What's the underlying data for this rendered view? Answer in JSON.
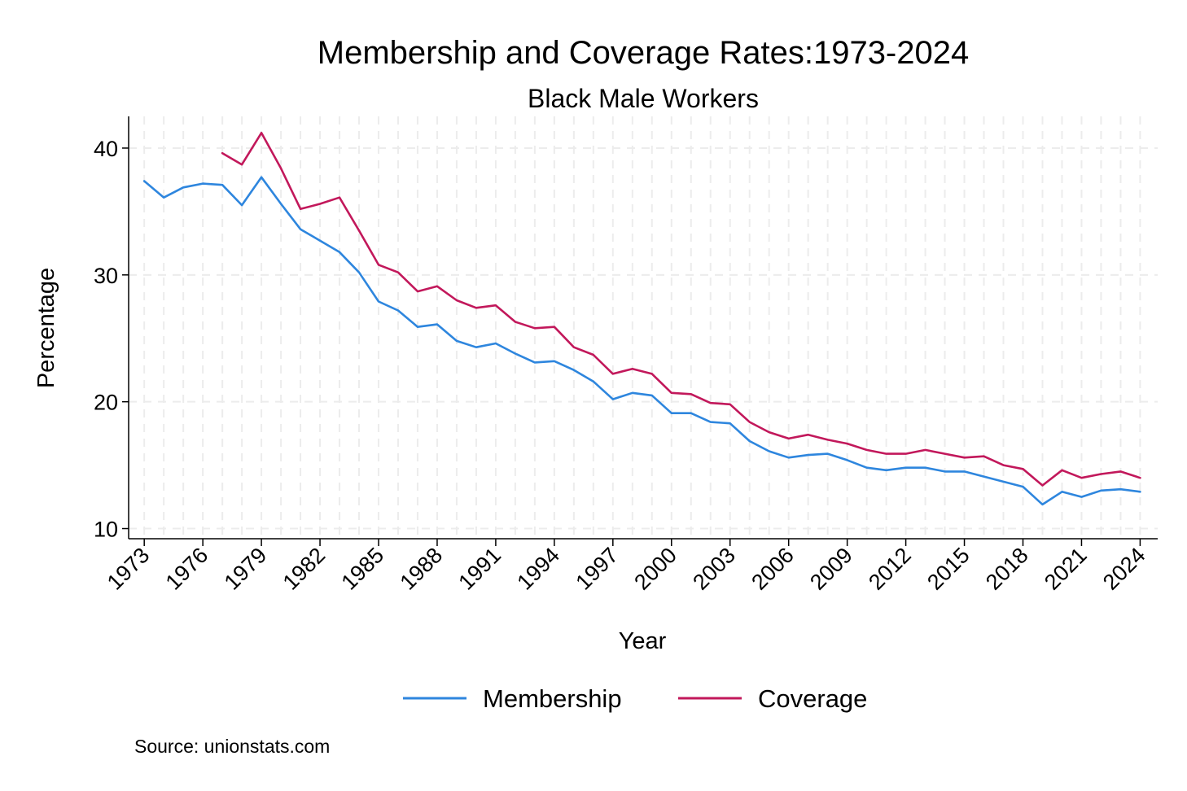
{
  "chart_data": {
    "type": "line",
    "title": "Membership and Coverage Rates:1973-2024",
    "subtitle": "Black Male Workers",
    "xlabel": "Year",
    "ylabel": "Percentage",
    "source": "Source: unionstats.com",
    "xlim": [
      1972.2,
      2024.9
    ],
    "ylim": [
      9.2,
      42.5
    ],
    "yticks": [
      10,
      20,
      30,
      40
    ],
    "xticks": [
      "1973",
      "1976",
      "1979",
      "1982",
      "1985",
      "1988",
      "1991",
      "1994",
      "1997",
      "2000",
      "2003",
      "2006",
      "2009",
      "2012",
      "2015",
      "2018",
      "2021",
      "2024"
    ],
    "grid": true,
    "legend_position": "bottom",
    "x": [
      1973,
      1974,
      1975,
      1976,
      1977,
      1978,
      1979,
      1980,
      1981,
      1982,
      1983,
      1984,
      1985,
      1986,
      1987,
      1988,
      1989,
      1990,
      1991,
      1992,
      1993,
      1994,
      1995,
      1996,
      1997,
      1998,
      1999,
      2000,
      2001,
      2002,
      2003,
      2004,
      2005,
      2006,
      2007,
      2008,
      2009,
      2010,
      2011,
      2012,
      2013,
      2014,
      2015,
      2016,
      2017,
      2018,
      2019,
      2020,
      2021,
      2022,
      2023,
      2024
    ],
    "series": [
      {
        "name": "Membership",
        "color": "#2e86de",
        "values": [
          37.4,
          36.1,
          36.9,
          37.2,
          37.1,
          35.5,
          37.7,
          35.6,
          33.6,
          32.7,
          31.8,
          30.2,
          27.9,
          27.2,
          25.9,
          26.1,
          24.8,
          24.3,
          24.6,
          23.8,
          23.1,
          23.2,
          22.5,
          21.6,
          20.2,
          20.7,
          20.5,
          19.1,
          19.1,
          18.4,
          18.3,
          16.9,
          16.1,
          15.6,
          15.8,
          15.9,
          15.4,
          14.8,
          14.6,
          14.8,
          14.8,
          14.5,
          14.5,
          14.1,
          13.7,
          13.3,
          11.9,
          12.9,
          12.5,
          13.0,
          13.1,
          12.9
        ]
      },
      {
        "name": "Coverage",
        "color": "#c2185b",
        "values": [
          null,
          null,
          null,
          null,
          39.6,
          38.7,
          41.2,
          38.4,
          35.2,
          35.6,
          36.1,
          33.5,
          30.8,
          30.2,
          28.7,
          29.1,
          28.0,
          27.4,
          27.6,
          26.3,
          25.8,
          25.9,
          24.3,
          23.7,
          22.2,
          22.6,
          22.2,
          20.7,
          20.6,
          19.9,
          19.8,
          18.4,
          17.6,
          17.1,
          17.4,
          17.0,
          16.7,
          16.2,
          15.9,
          15.9,
          16.2,
          15.9,
          15.6,
          15.7,
          15.0,
          14.7,
          13.4,
          14.6,
          14.0,
          14.3,
          14.5,
          14.0
        ]
      }
    ]
  }
}
